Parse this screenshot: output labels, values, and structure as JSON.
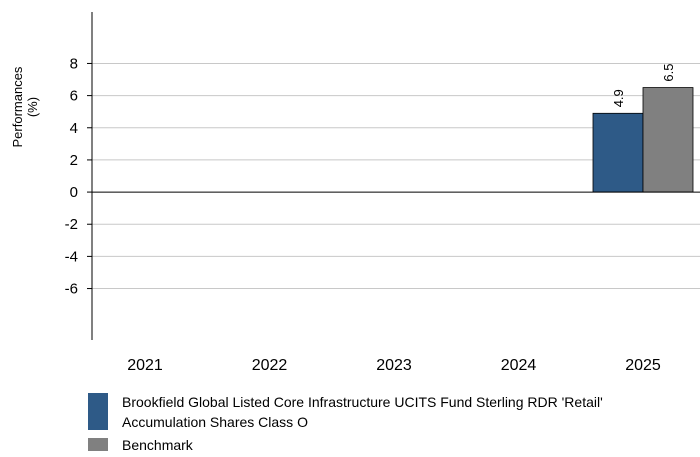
{
  "colors": {
    "fund": "#2e5a87",
    "benchmark": "#808080",
    "grid": "#c8c8c8",
    "axis": "#000000"
  },
  "chart_data": {
    "type": "bar",
    "ylabel_lines": [
      "Performances",
      "(%)"
    ],
    "categories": [
      "2021",
      "2022",
      "2023",
      "2024",
      "2025"
    ],
    "yticks": [
      8,
      6,
      4,
      2,
      0,
      -2,
      -4,
      -6
    ],
    "ylim": [
      -9.2,
      11.2
    ],
    "grid": true,
    "legend_position": "bottom",
    "series": [
      {
        "name": "Brookfield Global Listed Core Infrastructure UCITS Fund  Sterling RDR 'Retail' Accumulation Shares Class O",
        "values": [
          null,
          null,
          null,
          null,
          4.9
        ],
        "labels": [
          null,
          null,
          null,
          null,
          "4.9"
        ],
        "color_key": "fund"
      },
      {
        "name": "Benchmark",
        "values": [
          null,
          null,
          null,
          null,
          6.5
        ],
        "labels": [
          null,
          null,
          null,
          null,
          "6.5"
        ],
        "color_key": "benchmark"
      }
    ]
  },
  "legend": {
    "items": [
      {
        "label": "Brookfield Global Listed Core Infrastructure UCITS Fund  Sterling RDR 'Retail' Accumulation Shares Class O"
      },
      {
        "label": "Benchmark"
      }
    ]
  }
}
